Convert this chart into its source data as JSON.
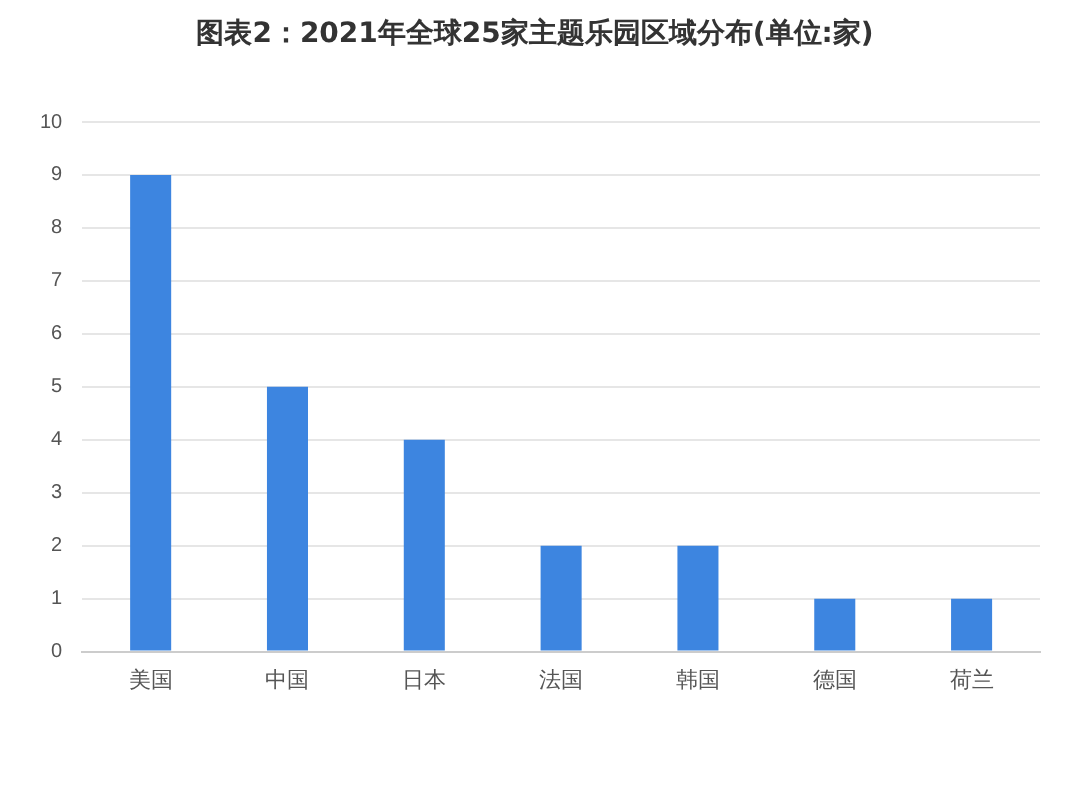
{
  "chart_data": {
    "type": "bar",
    "title": "图表2：2021年全球25家主题乐园区域分布(单位:家)",
    "categories": [
      "美国",
      "中国",
      "日本",
      "法国",
      "韩国",
      "德国",
      "荷兰"
    ],
    "values": [
      9,
      5,
      4,
      2,
      2,
      1,
      1
    ],
    "color": "#3d85e0",
    "ylim": [
      0,
      10
    ],
    "yticks": [
      0,
      1,
      2,
      3,
      4,
      5,
      6,
      7,
      8,
      9,
      10
    ],
    "grid": "y"
  }
}
